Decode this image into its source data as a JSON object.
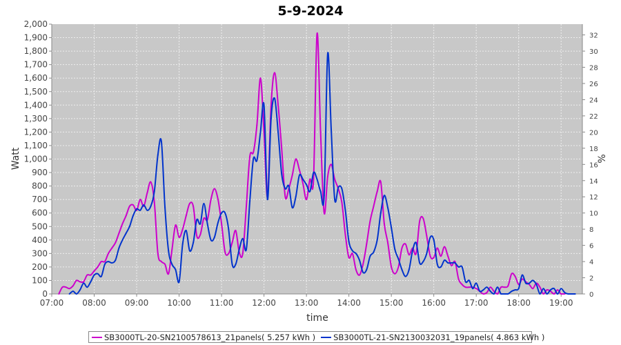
{
  "chart_data": {
    "type": "line",
    "title": "5-9-2024",
    "xlabel": "time",
    "ylabel": "Watt",
    "y2label": "%",
    "ylim": [
      0,
      2000
    ],
    "y2lim": [
      0,
      33.33
    ],
    "xlim": [
      "07:00",
      "19:30"
    ],
    "grid": true,
    "legend_position": "bottom",
    "x_ticks": [
      "07:00",
      "08:00",
      "09:00",
      "10:00",
      "11:00",
      "12:00",
      "13:00",
      "14:00",
      "15:00",
      "16:00",
      "17:00",
      "18:00",
      "19:00"
    ],
    "y_ticks": [
      "0",
      "100",
      "200",
      "300",
      "400",
      "500",
      "600",
      "700",
      "800",
      "900",
      "1,000",
      "1,100",
      "1,200",
      "1,300",
      "1,400",
      "1,500",
      "1,600",
      "1,700",
      "1,800",
      "1,900",
      "2,000"
    ],
    "y2_ticks": [
      "0",
      "2",
      "4",
      "6",
      "8",
      "10",
      "12",
      "14",
      "16",
      "18",
      "20",
      "22",
      "24",
      "26",
      "28",
      "30",
      "32"
    ],
    "colors": {
      "plot_bg": "#c8c8c8",
      "grid": "#eeeeee"
    },
    "series": [
      {
        "name": "SB3000TL-20-SN2100578613_21panels( 5.257 kWh )",
        "color": "#cc00cc",
        "points": [
          [
            "07:10",
            0
          ],
          [
            "07:15",
            50
          ],
          [
            "07:20",
            50
          ],
          [
            "07:25",
            40
          ],
          [
            "07:30",
            60
          ],
          [
            "07:35",
            100
          ],
          [
            "07:40",
            90
          ],
          [
            "07:45",
            90
          ],
          [
            "07:50",
            140
          ],
          [
            "07:55",
            140
          ],
          [
            "08:00",
            170
          ],
          [
            "08:05",
            200
          ],
          [
            "08:10",
            240
          ],
          [
            "08:15",
            240
          ],
          [
            "08:20",
            300
          ],
          [
            "08:25",
            340
          ],
          [
            "08:30",
            380
          ],
          [
            "08:35",
            450
          ],
          [
            "08:40",
            520
          ],
          [
            "08:45",
            580
          ],
          [
            "08:50",
            650
          ],
          [
            "08:55",
            660
          ],
          [
            "09:00",
            620
          ],
          [
            "09:05",
            700
          ],
          [
            "09:10",
            650
          ],
          [
            "09:15",
            750
          ],
          [
            "09:20",
            830
          ],
          [
            "09:25",
            680
          ],
          [
            "09:30",
            300
          ],
          [
            "09:35",
            240
          ],
          [
            "09:40",
            220
          ],
          [
            "09:45",
            150
          ],
          [
            "09:50",
            330
          ],
          [
            "09:55",
            510
          ],
          [
            "10:00",
            420
          ],
          [
            "10:05",
            480
          ],
          [
            "10:10",
            580
          ],
          [
            "10:15",
            670
          ],
          [
            "10:20",
            650
          ],
          [
            "10:25",
            430
          ],
          [
            "10:30",
            440
          ],
          [
            "10:35",
            560
          ],
          [
            "10:40",
            550
          ],
          [
            "10:45",
            700
          ],
          [
            "10:50",
            780
          ],
          [
            "10:55",
            700
          ],
          [
            "11:00",
            520
          ],
          [
            "11:05",
            310
          ],
          [
            "11:10",
            300
          ],
          [
            "11:15",
            380
          ],
          [
            "11:20",
            470
          ],
          [
            "11:25",
            310
          ],
          [
            "11:30",
            300
          ],
          [
            "11:35",
            650
          ],
          [
            "11:40",
            1020
          ],
          [
            "11:45",
            1050
          ],
          [
            "11:50",
            1250
          ],
          [
            "11:55",
            1600
          ],
          [
            "12:00",
            1200
          ],
          [
            "12:05",
            720
          ],
          [
            "12:10",
            1400
          ],
          [
            "12:15",
            1640
          ],
          [
            "12:20",
            1400
          ],
          [
            "12:25",
            1080
          ],
          [
            "12:30",
            720
          ],
          [
            "12:35",
            780
          ],
          [
            "12:40",
            880
          ],
          [
            "12:45",
            1000
          ],
          [
            "12:50",
            920
          ],
          [
            "12:55",
            820
          ],
          [
            "13:00",
            700
          ],
          [
            "13:05",
            850
          ],
          [
            "13:10",
            850
          ],
          [
            "13:15",
            1930
          ],
          [
            "13:20",
            1200
          ],
          [
            "13:25",
            600
          ],
          [
            "13:30",
            870
          ],
          [
            "13:35",
            960
          ],
          [
            "13:40",
            850
          ],
          [
            "13:45",
            780
          ],
          [
            "13:50",
            680
          ],
          [
            "13:55",
            440
          ],
          [
            "14:00",
            270
          ],
          [
            "14:05",
            300
          ],
          [
            "14:10",
            180
          ],
          [
            "14:15",
            140
          ],
          [
            "14:20",
            220
          ],
          [
            "14:25",
            370
          ],
          [
            "14:30",
            540
          ],
          [
            "14:35",
            650
          ],
          [
            "14:40",
            760
          ],
          [
            "14:45",
            830
          ],
          [
            "14:50",
            520
          ],
          [
            "14:55",
            380
          ],
          [
            "15:00",
            200
          ],
          [
            "15:05",
            150
          ],
          [
            "15:10",
            200
          ],
          [
            "15:15",
            340
          ],
          [
            "15:20",
            370
          ],
          [
            "15:25",
            290
          ],
          [
            "15:30",
            340
          ],
          [
            "15:35",
            300
          ],
          [
            "15:40",
            540
          ],
          [
            "15:45",
            560
          ],
          [
            "15:50",
            430
          ],
          [
            "15:55",
            280
          ],
          [
            "16:00",
            270
          ],
          [
            "16:05",
            340
          ],
          [
            "16:10",
            280
          ],
          [
            "16:15",
            350
          ],
          [
            "16:20",
            280
          ],
          [
            "16:25",
            210
          ],
          [
            "16:30",
            240
          ],
          [
            "16:35",
            110
          ],
          [
            "16:40",
            70
          ],
          [
            "16:45",
            50
          ],
          [
            "16:50",
            50
          ],
          [
            "16:55",
            50
          ],
          [
            "17:00",
            40
          ],
          [
            "17:05",
            20
          ],
          [
            "17:10",
            0
          ],
          [
            "17:15",
            10
          ],
          [
            "17:20",
            50
          ],
          [
            "17:25",
            20
          ],
          [
            "17:30",
            0
          ],
          [
            "17:35",
            50
          ],
          [
            "17:40",
            50
          ],
          [
            "17:45",
            60
          ],
          [
            "17:50",
            150
          ],
          [
            "17:55",
            130
          ],
          [
            "18:00",
            70
          ],
          [
            "18:05",
            110
          ],
          [
            "18:10",
            90
          ],
          [
            "18:15",
            70
          ],
          [
            "18:20",
            40
          ],
          [
            "18:25",
            80
          ],
          [
            "18:30",
            50
          ],
          [
            "18:35",
            0
          ],
          [
            "18:40",
            30
          ],
          [
            "18:45",
            20
          ],
          [
            "18:50",
            0
          ],
          [
            "18:55",
            30
          ],
          [
            "19:00",
            0
          ],
          [
            "19:05",
            0
          ]
        ]
      },
      {
        "name": "SB3000TL-21-SN2130032031_19panels( 4.863 kWh )",
        "color": "#0033cc",
        "points": [
          [
            "07:25",
            0
          ],
          [
            "07:30",
            20
          ],
          [
            "07:35",
            0
          ],
          [
            "07:40",
            30
          ],
          [
            "07:45",
            80
          ],
          [
            "07:50",
            50
          ],
          [
            "07:55",
            90
          ],
          [
            "08:00",
            140
          ],
          [
            "08:05",
            150
          ],
          [
            "08:10",
            130
          ],
          [
            "08:15",
            220
          ],
          [
            "08:20",
            240
          ],
          [
            "08:25",
            230
          ],
          [
            "08:30",
            250
          ],
          [
            "08:35",
            340
          ],
          [
            "08:40",
            400
          ],
          [
            "08:45",
            450
          ],
          [
            "08:50",
            500
          ],
          [
            "08:55",
            580
          ],
          [
            "09:00",
            630
          ],
          [
            "09:05",
            620
          ],
          [
            "09:10",
            660
          ],
          [
            "09:15",
            620
          ],
          [
            "09:20",
            650
          ],
          [
            "09:25",
            760
          ],
          [
            "09:30",
            1030
          ],
          [
            "09:35",
            1130
          ],
          [
            "09:40",
            640
          ],
          [
            "09:45",
            320
          ],
          [
            "09:50",
            220
          ],
          [
            "09:55",
            180
          ],
          [
            "10:00",
            90
          ],
          [
            "10:05",
            370
          ],
          [
            "10:10",
            470
          ],
          [
            "10:15",
            320
          ],
          [
            "10:20",
            380
          ],
          [
            "10:25",
            550
          ],
          [
            "10:30",
            520
          ],
          [
            "10:35",
            670
          ],
          [
            "10:40",
            520
          ],
          [
            "10:45",
            400
          ],
          [
            "10:50",
            420
          ],
          [
            "10:55",
            530
          ],
          [
            "11:00",
            600
          ],
          [
            "11:05",
            600
          ],
          [
            "11:10",
            480
          ],
          [
            "11:15",
            220
          ],
          [
            "11:20",
            220
          ],
          [
            "11:25",
            330
          ],
          [
            "11:30",
            410
          ],
          [
            "11:35",
            330
          ],
          [
            "11:40",
            690
          ],
          [
            "11:45",
            1000
          ],
          [
            "11:50",
            990
          ],
          [
            "11:55",
            1200
          ],
          [
            "12:00",
            1400
          ],
          [
            "12:05",
            700
          ],
          [
            "12:10",
            1300
          ],
          [
            "12:15",
            1450
          ],
          [
            "12:20",
            1200
          ],
          [
            "12:25",
            890
          ],
          [
            "12:30",
            780
          ],
          [
            "12:35",
            800
          ],
          [
            "12:40",
            640
          ],
          [
            "12:45",
            720
          ],
          [
            "12:50",
            880
          ],
          [
            "12:55",
            850
          ],
          [
            "13:00",
            810
          ],
          [
            "13:05",
            760
          ],
          [
            "13:10",
            900
          ],
          [
            "13:15",
            850
          ],
          [
            "13:20",
            760
          ],
          [
            "13:25",
            730
          ],
          [
            "13:30",
            1780
          ],
          [
            "13:35",
            1220
          ],
          [
            "13:40",
            700
          ],
          [
            "13:45",
            790
          ],
          [
            "13:50",
            780
          ],
          [
            "13:55",
            620
          ],
          [
            "14:00",
            390
          ],
          [
            "14:05",
            320
          ],
          [
            "14:10",
            300
          ],
          [
            "14:15",
            250
          ],
          [
            "14:20",
            160
          ],
          [
            "14:25",
            180
          ],
          [
            "14:30",
            280
          ],
          [
            "14:35",
            310
          ],
          [
            "14:40",
            400
          ],
          [
            "14:45",
            600
          ],
          [
            "14:50",
            730
          ],
          [
            "14:55",
            640
          ],
          [
            "15:00",
            490
          ],
          [
            "15:05",
            330
          ],
          [
            "15:10",
            260
          ],
          [
            "15:15",
            180
          ],
          [
            "15:20",
            130
          ],
          [
            "15:25",
            180
          ],
          [
            "15:30",
            320
          ],
          [
            "15:35",
            380
          ],
          [
            "15:40",
            230
          ],
          [
            "15:45",
            240
          ],
          [
            "15:50",
            300
          ],
          [
            "15:55",
            420
          ],
          [
            "16:00",
            400
          ],
          [
            "16:05",
            220
          ],
          [
            "16:10",
            200
          ],
          [
            "16:15",
            250
          ],
          [
            "16:20",
            230
          ],
          [
            "16:25",
            230
          ],
          [
            "16:30",
            230
          ],
          [
            "16:35",
            200
          ],
          [
            "16:40",
            200
          ],
          [
            "16:45",
            90
          ],
          [
            "16:50",
            100
          ],
          [
            "16:55",
            40
          ],
          [
            "17:00",
            80
          ],
          [
            "17:05",
            20
          ],
          [
            "17:10",
            30
          ],
          [
            "17:15",
            50
          ],
          [
            "17:20",
            20
          ],
          [
            "17:25",
            0
          ],
          [
            "17:30",
            50
          ],
          [
            "17:35",
            0
          ],
          [
            "17:40",
            0
          ],
          [
            "17:45",
            0
          ],
          [
            "17:50",
            20
          ],
          [
            "17:55",
            30
          ],
          [
            "18:00",
            40
          ],
          [
            "18:05",
            140
          ],
          [
            "18:10",
            80
          ],
          [
            "18:15",
            80
          ],
          [
            "18:20",
            100
          ],
          [
            "18:25",
            70
          ],
          [
            "18:30",
            0
          ],
          [
            "18:35",
            40
          ],
          [
            "18:40",
            0
          ],
          [
            "18:45",
            30
          ],
          [
            "18:50",
            40
          ],
          [
            "18:55",
            0
          ],
          [
            "19:00",
            40
          ],
          [
            "19:05",
            10
          ],
          [
            "19:10",
            0
          ],
          [
            "19:15",
            0
          ],
          [
            "19:20",
            0
          ]
        ]
      }
    ]
  }
}
